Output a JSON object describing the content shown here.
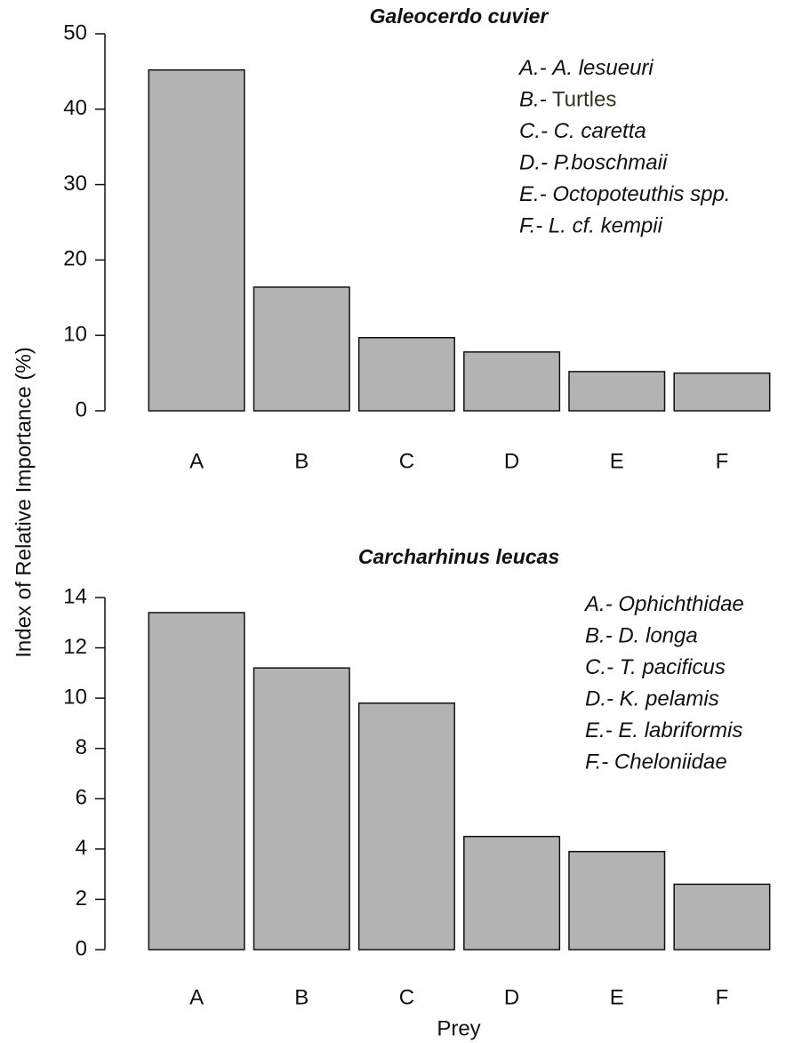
{
  "ylabel": "Index of Relative Importance (%)",
  "xlabel": "Prey",
  "chart_data": [
    {
      "type": "bar",
      "title": "Galeocerdo cuvier",
      "categories": [
        "A",
        "B",
        "C",
        "D",
        "E",
        "F"
      ],
      "values": [
        45.2,
        16.4,
        9.7,
        7.8,
        5.2,
        5.0
      ],
      "color": "#b3b3b3",
      "ylim": [
        0,
        50
      ],
      "yticks": [
        0,
        10,
        20,
        30,
        40,
        50
      ],
      "legend": [
        {
          "key": "A.-",
          "name": "A. lesueuri"
        },
        {
          "key": "B.-",
          "name": "Turtles",
          "italic": false,
          "color": "#2b3a1f"
        },
        {
          "key": "C.-",
          "name": "C. caretta"
        },
        {
          "key": "D.-",
          "name": "P.boschmaii"
        },
        {
          "key": "E.-",
          "name": "Octopoteuthis spp."
        },
        {
          "key": "F.-",
          "name": "L. cf. kempii"
        }
      ]
    },
    {
      "type": "bar",
      "title": "Carcharhinus leucas",
      "categories": [
        "A",
        "B",
        "C",
        "D",
        "E",
        "F"
      ],
      "values": [
        13.4,
        11.2,
        9.8,
        4.5,
        3.9,
        2.6
      ],
      "color": "#b3b3b3",
      "ylim": [
        0,
        14
      ],
      "yticks": [
        0,
        2,
        4,
        6,
        8,
        10,
        12,
        14
      ],
      "legend": [
        {
          "key": "A.-",
          "name": "Ophichthidae"
        },
        {
          "key": "B.-",
          "name": "D. longa"
        },
        {
          "key": "C.-",
          "name": "T. pacificus"
        },
        {
          "key": "D.-",
          "name": "K. pelamis"
        },
        {
          "key": "E.-",
          "name": "E. labriformis"
        },
        {
          "key": "F.-",
          "name": "Cheloniidae"
        }
      ]
    }
  ]
}
